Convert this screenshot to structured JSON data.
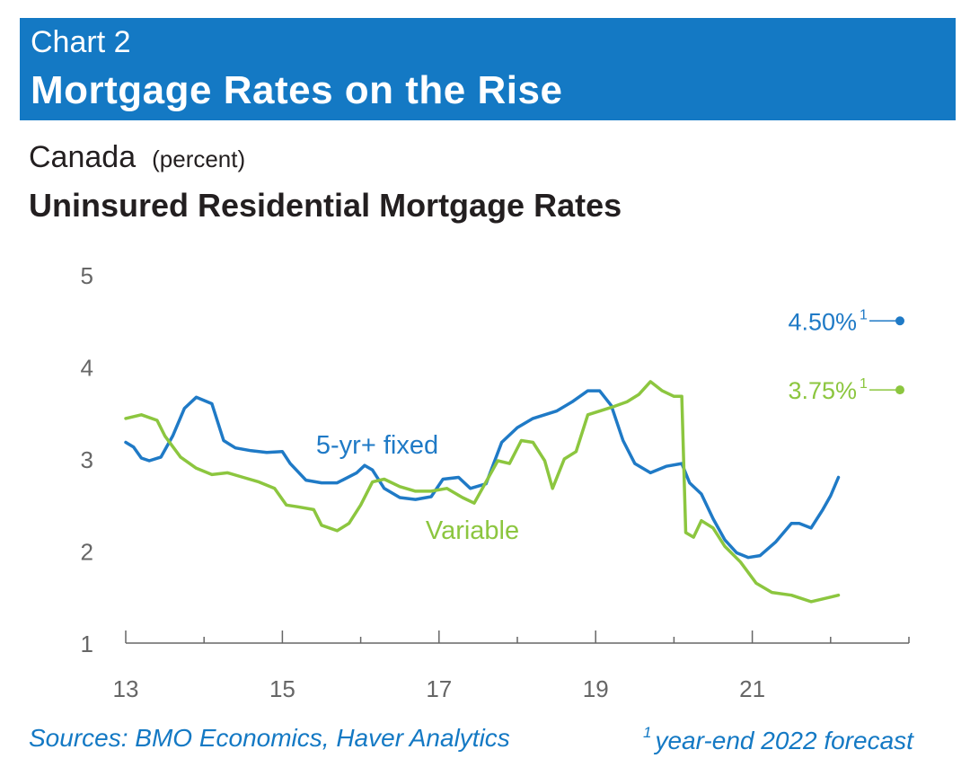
{
  "header": {
    "chart_label": "Chart 2",
    "title": "Mortgage Rates on the Rise"
  },
  "subheader": {
    "region": "Canada",
    "unit": "(percent)"
  },
  "footer": {
    "sources": "Sources: BMO Economics, Haver Analytics",
    "footnote_mark": "1",
    "footnote": "year-end 2022 forecast"
  },
  "colors": {
    "banner": "#1479c4",
    "fixed": "#1f7ac6",
    "variable": "#8cc63f",
    "axis": "#666666"
  },
  "chart_data": {
    "type": "line",
    "title": "Uninsured Residential Mortgage Rates",
    "xlabel": "",
    "ylabel": "",
    "xlim": [
      2013,
      2023.0
    ],
    "ylim": [
      1,
      5
    ],
    "x_ticks": [
      13,
      15,
      17,
      19,
      21
    ],
    "y_ticks": [
      1,
      2,
      3,
      4,
      5
    ],
    "grid": false,
    "series": [
      {
        "name": "5-yr+ fixed",
        "key": "fixed",
        "points": [
          [
            2013.0,
            3.18
          ],
          [
            2013.1,
            3.13
          ],
          [
            2013.2,
            3.01
          ],
          [
            2013.3,
            2.98
          ],
          [
            2013.45,
            3.02
          ],
          [
            2013.6,
            3.25
          ],
          [
            2013.75,
            3.55
          ],
          [
            2013.9,
            3.67
          ],
          [
            2014.1,
            3.6
          ],
          [
            2014.25,
            3.2
          ],
          [
            2014.4,
            3.12
          ],
          [
            2014.6,
            3.09
          ],
          [
            2014.8,
            3.07
          ],
          [
            2015.0,
            3.08
          ],
          [
            2015.1,
            2.95
          ],
          [
            2015.3,
            2.77
          ],
          [
            2015.5,
            2.74
          ],
          [
            2015.7,
            2.74
          ],
          [
            2015.95,
            2.85
          ],
          [
            2016.05,
            2.93
          ],
          [
            2016.15,
            2.88
          ],
          [
            2016.3,
            2.68
          ],
          [
            2016.5,
            2.58
          ],
          [
            2016.7,
            2.56
          ],
          [
            2016.9,
            2.59
          ],
          [
            2017.05,
            2.78
          ],
          [
            2017.25,
            2.8
          ],
          [
            2017.4,
            2.68
          ],
          [
            2017.6,
            2.73
          ],
          [
            2017.8,
            3.18
          ],
          [
            2018.0,
            3.34
          ],
          [
            2018.2,
            3.44
          ],
          [
            2018.5,
            3.52
          ],
          [
            2018.7,
            3.62
          ],
          [
            2018.9,
            3.74
          ],
          [
            2019.05,
            3.74
          ],
          [
            2019.2,
            3.58
          ],
          [
            2019.35,
            3.2
          ],
          [
            2019.5,
            2.95
          ],
          [
            2019.7,
            2.85
          ],
          [
            2019.9,
            2.92
          ],
          [
            2020.1,
            2.95
          ],
          [
            2020.2,
            2.74
          ],
          [
            2020.35,
            2.62
          ],
          [
            2020.5,
            2.35
          ],
          [
            2020.65,
            2.12
          ],
          [
            2020.8,
            1.98
          ],
          [
            2020.95,
            1.93
          ],
          [
            2021.1,
            1.95
          ],
          [
            2021.3,
            2.1
          ],
          [
            2021.5,
            2.3
          ],
          [
            2021.6,
            2.3
          ],
          [
            2021.75,
            2.25
          ],
          [
            2021.9,
            2.45
          ],
          [
            2022.0,
            2.6
          ],
          [
            2022.1,
            2.8
          ]
        ],
        "end_label": "4.50%",
        "end_label_value": 4.5
      },
      {
        "name": "Variable",
        "key": "variable",
        "points": [
          [
            2013.0,
            3.44
          ],
          [
            2013.2,
            3.48
          ],
          [
            2013.4,
            3.42
          ],
          [
            2013.5,
            3.25
          ],
          [
            2013.7,
            3.02
          ],
          [
            2013.9,
            2.9
          ],
          [
            2014.1,
            2.83
          ],
          [
            2014.3,
            2.85
          ],
          [
            2014.5,
            2.8
          ],
          [
            2014.7,
            2.75
          ],
          [
            2014.9,
            2.68
          ],
          [
            2015.05,
            2.5
          ],
          [
            2015.2,
            2.48
          ],
          [
            2015.4,
            2.45
          ],
          [
            2015.5,
            2.28
          ],
          [
            2015.7,
            2.22
          ],
          [
            2015.85,
            2.3
          ],
          [
            2016.0,
            2.5
          ],
          [
            2016.15,
            2.75
          ],
          [
            2016.3,
            2.78
          ],
          [
            2016.5,
            2.7
          ],
          [
            2016.7,
            2.65
          ],
          [
            2016.9,
            2.65
          ],
          [
            2017.1,
            2.68
          ],
          [
            2017.3,
            2.58
          ],
          [
            2017.45,
            2.52
          ],
          [
            2017.6,
            2.75
          ],
          [
            2017.75,
            2.98
          ],
          [
            2017.9,
            2.95
          ],
          [
            2018.05,
            3.2
          ],
          [
            2018.2,
            3.18
          ],
          [
            2018.35,
            2.98
          ],
          [
            2018.45,
            2.68
          ],
          [
            2018.6,
            3.0
          ],
          [
            2018.75,
            3.08
          ],
          [
            2018.9,
            3.48
          ],
          [
            2019.05,
            3.52
          ],
          [
            2019.2,
            3.56
          ],
          [
            2019.4,
            3.62
          ],
          [
            2019.55,
            3.7
          ],
          [
            2019.7,
            3.84
          ],
          [
            2019.85,
            3.74
          ],
          [
            2020.0,
            3.68
          ],
          [
            2020.1,
            3.68
          ],
          [
            2020.15,
            2.2
          ],
          [
            2020.25,
            2.15
          ],
          [
            2020.35,
            2.33
          ],
          [
            2020.5,
            2.25
          ],
          [
            2020.65,
            2.05
          ],
          [
            2020.85,
            1.88
          ],
          [
            2021.05,
            1.65
          ],
          [
            2021.25,
            1.55
          ],
          [
            2021.5,
            1.52
          ],
          [
            2021.75,
            1.45
          ],
          [
            2022.0,
            1.5
          ],
          [
            2022.1,
            1.52
          ]
        ],
        "end_label": "3.75%",
        "end_label_value": 3.75
      }
    ],
    "annotations": [
      {
        "text": "5-yr+ fixed",
        "series": "fixed"
      },
      {
        "text": "Variable",
        "series": "variable"
      }
    ]
  }
}
